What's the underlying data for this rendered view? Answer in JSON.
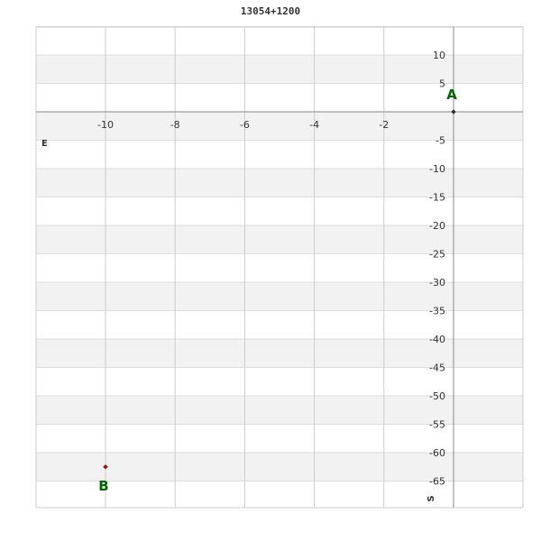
{
  "chart_data": {
    "type": "scatter",
    "title": "13054+1200",
    "xlim": [
      -12,
      2
    ],
    "ylim": [
      -70,
      15
    ],
    "x_ticks": [
      -10,
      -8,
      -6,
      -4,
      -2
    ],
    "y_ticks": [
      10,
      5,
      -5,
      -10,
      -15,
      -20,
      -25,
      -30,
      -35,
      -40,
      -45,
      -50,
      -55,
      -60,
      -65
    ],
    "x_axis_label": "E",
    "y_axis_label": "S",
    "grid": true,
    "points": [
      {
        "label": "A",
        "x": 0,
        "y": 0,
        "color": "#333333"
      },
      {
        "label": "B",
        "x": -10,
        "y": -62.5,
        "color": "#cc0000"
      }
    ],
    "label_color": "#006600",
    "band_color": "#f2f2f2"
  }
}
